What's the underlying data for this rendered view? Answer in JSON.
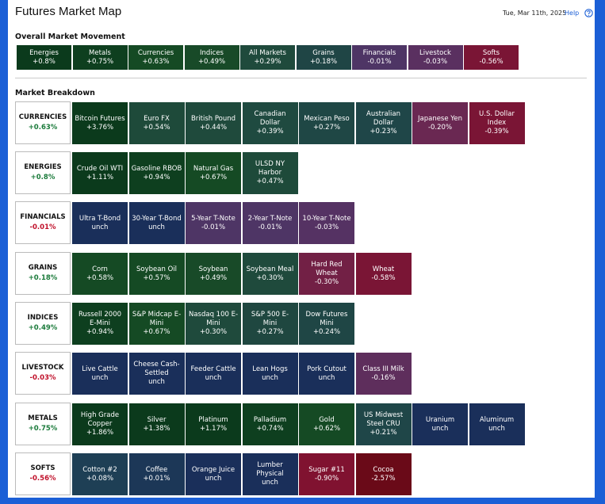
{
  "header": {
    "title": "Futures Market Map",
    "date": "Tue, Mar 11th, 2025",
    "help": "Help"
  },
  "overall": {
    "title": "Overall Market Movement",
    "tiles": [
      {
        "name": "Energies",
        "change": "+0.8%",
        "color": "#0b3a1c"
      },
      {
        "name": "Metals",
        "change": "+0.75%",
        "color": "#0e3f1f"
      },
      {
        "name": "Currencies",
        "change": "+0.63%",
        "color": "#154a24"
      },
      {
        "name": "Indices",
        "change": "+0.49%",
        "color": "#184a28"
      },
      {
        "name": "All Markets",
        "change": "+0.29%",
        "color": "#1f4a3c"
      },
      {
        "name": "Grains",
        "change": "+0.18%",
        "color": "#1f4545"
      },
      {
        "name": "Financials",
        "change": "-0.01%",
        "color": "#4e3565"
      },
      {
        "name": "Livestock",
        "change": "-0.03%",
        "color": "#5a3060"
      },
      {
        "name": "Softs",
        "change": "-0.56%",
        "color": "#7a1535"
      }
    ]
  },
  "breakdown": {
    "title": "Market Breakdown",
    "rows": [
      {
        "name": "CURRENCIES",
        "change": "+0.63%",
        "change_color": "#1a7a3a",
        "tiles": [
          {
            "name": "Bitcoin Futures",
            "change": "+3.76%",
            "color": "#0b3a1c"
          },
          {
            "name": "Euro FX",
            "change": "+0.54%",
            "color": "#1e4a3a"
          },
          {
            "name": "British Pound",
            "change": "+0.44%",
            "color": "#1f4a3c"
          },
          {
            "name": "Canadian Dollar",
            "change": "+0.39%",
            "color": "#1f4a40"
          },
          {
            "name": "Mexican Peso",
            "change": "+0.27%",
            "color": "#1f4745"
          },
          {
            "name": "Australian Dollar",
            "change": "+0.23%",
            "color": "#1f4648"
          },
          {
            "name": "Japanese Yen",
            "change": "-0.20%",
            "color": "#6a2852"
          },
          {
            "name": "U.S. Dollar Index",
            "change": "-0.39%",
            "color": "#7a1535"
          }
        ]
      },
      {
        "name": "ENERGIES",
        "change": "+0.8%",
        "change_color": "#1a7a3a",
        "tiles": [
          {
            "name": "Crude Oil WTI",
            "change": "+1.11%",
            "color": "#0b3a1c"
          },
          {
            "name": "Gasoline RBOB",
            "change": "+0.94%",
            "color": "#0e3f1f"
          },
          {
            "name": "Natural Gas",
            "change": "+0.67%",
            "color": "#154a24"
          },
          {
            "name": "ULSD NY Harbor",
            "change": "+0.47%",
            "color": "#1e4a3a"
          }
        ]
      },
      {
        "name": "FINANCIALS",
        "change": "-0.01%",
        "change_color": "#c0102a",
        "tiles": [
          {
            "name": "Ultra T-Bond",
            "change": "unch",
            "color": "#1a2f5a"
          },
          {
            "name": "30-Year T-Bond",
            "change": "unch",
            "color": "#1a2f5a"
          },
          {
            "name": "5-Year T-Note",
            "change": "-0.01%",
            "color": "#4e3565"
          },
          {
            "name": "2-Year T-Note",
            "change": "-0.01%",
            "color": "#4e3565"
          },
          {
            "name": "10-Year T-Note",
            "change": "-0.03%",
            "color": "#553263"
          }
        ]
      },
      {
        "name": "GRAINS",
        "change": "+0.18%",
        "change_color": "#1a7a3a",
        "tiles": [
          {
            "name": "Corn",
            "change": "+0.58%",
            "color": "#154a24"
          },
          {
            "name": "Soybean Oil",
            "change": "+0.57%",
            "color": "#154a24"
          },
          {
            "name": "Soybean",
            "change": "+0.49%",
            "color": "#184a28"
          },
          {
            "name": "Soybean Meal",
            "change": "+0.30%",
            "color": "#1f4a3c"
          },
          {
            "name": "Hard Red Wheat",
            "change": "-0.30%",
            "color": "#722045"
          },
          {
            "name": "Wheat",
            "change": "-0.58%",
            "color": "#7a1535"
          }
        ]
      },
      {
        "name": "INDICES",
        "change": "+0.49%",
        "change_color": "#1a7a3a",
        "tiles": [
          {
            "name": "Russell 2000 E-Mini",
            "change": "+0.94%",
            "color": "#0e3f1f"
          },
          {
            "name": "S&P Midcap E-Mini",
            "change": "+0.67%",
            "color": "#154a24"
          },
          {
            "name": "Nasdaq 100 E-Mini",
            "change": "+0.30%",
            "color": "#1f4a3c"
          },
          {
            "name": "S&P 500 E-Mini",
            "change": "+0.27%",
            "color": "#1f4740"
          },
          {
            "name": "Dow Futures Mini",
            "change": "+0.24%",
            "color": "#1f4645"
          }
        ]
      },
      {
        "name": "LIVESTOCK",
        "change": "-0.03%",
        "change_color": "#c0102a",
        "tiles": [
          {
            "name": "Live Cattle",
            "change": "unch",
            "color": "#1a2f5a"
          },
          {
            "name": "Cheese Cash-Settled",
            "change": "unch",
            "color": "#1a2f5a"
          },
          {
            "name": "Feeder Cattle",
            "change": "unch",
            "color": "#1a2f5a"
          },
          {
            "name": "Lean Hogs",
            "change": "unch",
            "color": "#1a2f5a"
          },
          {
            "name": "Pork Cutout",
            "change": "unch",
            "color": "#1a2f5a"
          },
          {
            "name": "Class III Milk",
            "change": "-0.16%",
            "color": "#5e2e5c"
          }
        ]
      },
      {
        "name": "METALS",
        "change": "+0.75%",
        "change_color": "#1a7a3a",
        "tiles": [
          {
            "name": "High Grade Copper",
            "change": "+1.86%",
            "color": "#0b3a1c"
          },
          {
            "name": "Silver",
            "change": "+1.38%",
            "color": "#0b3a1c"
          },
          {
            "name": "Platinum",
            "change": "+1.17%",
            "color": "#0b3a1c"
          },
          {
            "name": "Palladium",
            "change": "+0.74%",
            "color": "#0e3f1f"
          },
          {
            "name": "Gold",
            "change": "+0.62%",
            "color": "#154a24"
          },
          {
            "name": "US Midwest Steel CRU",
            "change": "+0.21%",
            "color": "#1f4648"
          },
          {
            "name": "Uranium",
            "change": "unch",
            "color": "#1a2f5a"
          },
          {
            "name": "Aluminum",
            "change": "unch",
            "color": "#1a2f5a"
          }
        ]
      },
      {
        "name": "SOFTS",
        "change": "-0.56%",
        "change_color": "#c0102a",
        "tiles": [
          {
            "name": "Cotton #2",
            "change": "+0.08%",
            "color": "#1e3f55"
          },
          {
            "name": "Coffee",
            "change": "+0.01%",
            "color": "#1c3757"
          },
          {
            "name": "Orange Juice",
            "change": "unch",
            "color": "#1a2f5a"
          },
          {
            "name": "Lumber Physical",
            "change": "unch",
            "color": "#1a2f5a"
          },
          {
            "name": "Sugar #11",
            "change": "-0.90%",
            "color": "#801230"
          },
          {
            "name": "Cocoa",
            "change": "-2.57%",
            "color": "#6a0a18"
          }
        ]
      }
    ]
  }
}
